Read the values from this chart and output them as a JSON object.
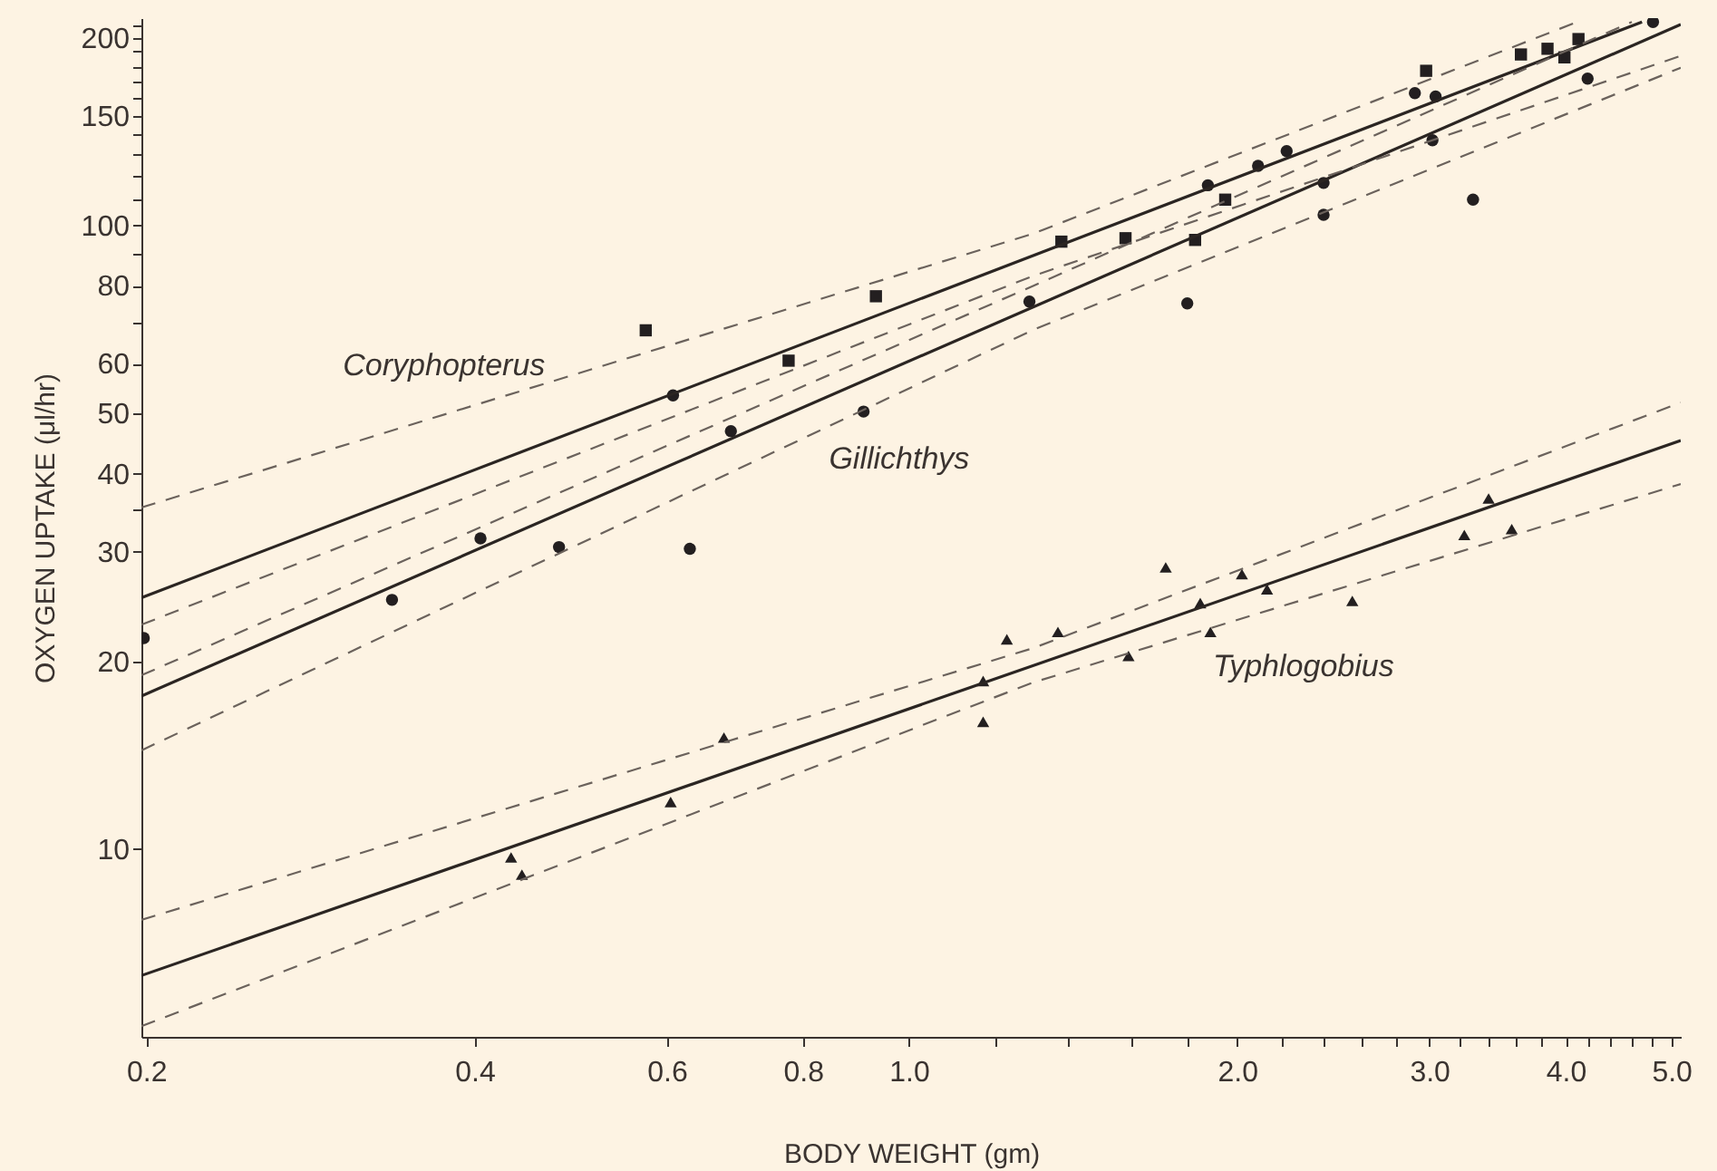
{
  "chart_data": {
    "type": "scatter",
    "xlabel": "BODY WEIGHT (gm)",
    "ylabel": "OXYGEN UPTAKE (μl/hr)",
    "log": "xy",
    "grid": false,
    "xlim": [
      0.198,
      5.1
    ],
    "ylim": [
      5,
      215
    ],
    "xticks": [
      0.2,
      0.4,
      0.6,
      0.8,
      {
        "value": 1,
        "label": "1.0"
      },
      {
        "value": 1.2,
        "label": null
      },
      {
        "value": 1.4,
        "label": null
      },
      {
        "value": 1.6,
        "label": null
      },
      {
        "value": 1.8,
        "label": null
      },
      {
        "value": 2,
        "label": "2.0"
      },
      {
        "value": 2.2,
        "label": null
      },
      {
        "value": 2.4,
        "label": null
      },
      {
        "value": 2.6,
        "label": null
      },
      {
        "value": 2.8,
        "label": null
      },
      {
        "value": 3,
        "label": "3.0"
      },
      {
        "value": 3.2,
        "label": null
      },
      {
        "value": 3.4,
        "label": null
      },
      {
        "value": 3.6,
        "label": null
      },
      {
        "value": 3.8,
        "label": null
      },
      {
        "value": 4,
        "label": "4.0"
      },
      {
        "value": 4.2,
        "label": null
      },
      {
        "value": 4.4,
        "label": null
      },
      {
        "value": 4.6,
        "label": null
      },
      {
        "value": 4.8,
        "label": null
      },
      {
        "value": 5,
        "label": "5.0"
      }
    ],
    "yticks": [
      10,
      20,
      30,
      {
        "value": 35,
        "label": null
      },
      40,
      50,
      60,
      {
        "value": 70,
        "label": null
      },
      80,
      {
        "value": 90,
        "label": null
      },
      100,
      {
        "value": 110,
        "label": null
      },
      {
        "value": 120,
        "label": null
      },
      {
        "value": 130,
        "label": null
      },
      {
        "value": 140,
        "label": null
      },
      150,
      {
        "value": 160,
        "label": null
      },
      {
        "value": 170,
        "label": null
      },
      {
        "value": 180,
        "label": null
      },
      {
        "value": 190,
        "label": null
      },
      200,
      {
        "value": 210,
        "label": null
      }
    ],
    "series": [
      {
        "marker": "circle",
        "color": "#231f20",
        "x": [
          0.199,
          0.336,
          0.405,
          0.478,
          0.608,
          0.63,
          0.687,
          0.909,
          1.29,
          1.8,
          1.88,
          2.09,
          2.22,
          2.4,
          2.4,
          2.91,
          3.04,
          3.02,
          3.29,
          4.19,
          4.81
        ],
        "values": [
          21.8,
          25.1,
          31.5,
          30.5,
          53.4,
          30.3,
          46.8,
          50.3,
          75.5,
          75,
          116,
          124.6,
          131.6,
          117,
          104,
          163,
          161,
          137,
          110,
          172,
          212
        ]
      },
      {
        "marker": "square",
        "color": "#231f20",
        "x": [
          0.574,
          0.776,
          0.933,
          1.38,
          1.58,
          1.83,
          1.95,
          2.98,
          3.64,
          3.85,
          3.99,
          4.11
        ],
        "values": [
          67.9,
          60.7,
          77,
          94.2,
          95.4,
          94.8,
          110,
          177,
          188,
          192,
          186,
          199
        ]
      },
      {
        "marker": "triangle",
        "color": "#231f20",
        "x": [
          0.432,
          0.442,
          0.605,
          0.677,
          1.17,
          1.17,
          1.23,
          1.37,
          1.59,
          1.72,
          1.85,
          1.89,
          2.02,
          2.13,
          2.55,
          3.4,
          3.23,
          3.57
        ],
        "values": [
          9.7,
          9.1,
          11.9,
          15.1,
          18.6,
          16.0,
          21.7,
          22.3,
          20.4,
          28.3,
          24.8,
          22.3,
          27.6,
          26.1,
          25,
          36.5,
          31.9,
          32.6
        ]
      },
      {
        "type": "line",
        "line_style": "solid",
        "marker": "none",
        "color": "#2b2522",
        "x": [
          0.198,
          4.7
        ],
        "values": [
          25.3,
          212
        ]
      },
      {
        "type": "line",
        "line_style": "solid",
        "marker": "none",
        "color": "#2b2522",
        "x": [
          0.198,
          5.1
        ],
        "values": [
          17.6,
          210
        ]
      },
      {
        "type": "line",
        "line_style": "solid",
        "marker": "none",
        "color": "#2b2522",
        "x": [
          0.198,
          5.1
        ],
        "values": [
          6.27,
          45.2
        ]
      },
      {
        "type": "line",
        "line_style": "dashed",
        "marker": "none",
        "color": "#6b625c",
        "x": [
          0.198,
          1.3,
          4.1
        ],
        "values": [
          35.3,
          97,
          212
        ]
      },
      {
        "type": "line",
        "line_style": "dashed",
        "marker": "none",
        "color": "#6b625c",
        "x": [
          0.198,
          1.3,
          5.1
        ],
        "values": [
          22.9,
          83,
          187
        ]
      },
      {
        "type": "line",
        "line_style": "dashed",
        "marker": "none",
        "color": "#6b625c",
        "x": [
          0.198,
          1.3,
          4.6
        ],
        "values": [
          19.0,
          80,
          212
        ]
      },
      {
        "type": "line",
        "line_style": "dashed",
        "marker": "none",
        "color": "#6b625c",
        "x": [
          0.198,
          1.3,
          5.1
        ],
        "values": [
          14.4,
          68,
          179
        ]
      },
      {
        "type": "line",
        "line_style": "dashed",
        "marker": "none",
        "color": "#6b625c",
        "x": [
          0.198,
          1.3,
          5.1
        ],
        "values": [
          7.7,
          21,
          52
        ]
      },
      {
        "type": "line",
        "line_style": "dashed",
        "marker": "none",
        "color": "#6b625c",
        "x": [
          0.198,
          1.3,
          5.1
        ],
        "values": [
          5.2,
          18.5,
          38.5
        ]
      }
    ],
    "annotations": [
      {
        "text": "Coryphopterus",
        "x": 0.375,
        "y": 49.7
      },
      {
        "text": "Gillichthys",
        "x": 0.98,
        "y": 54
      },
      {
        "text": "Typhlogobius",
        "x": 2.3,
        "y": 25.1
      }
    ]
  }
}
